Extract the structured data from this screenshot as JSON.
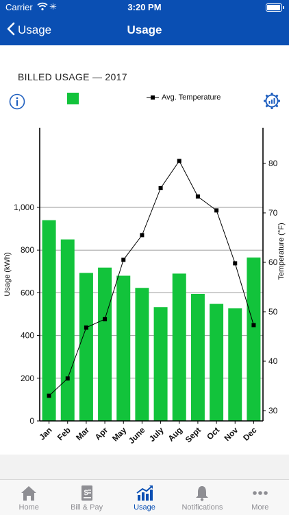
{
  "status_bar": {
    "carrier": "Carrier",
    "time": "3:20 PM"
  },
  "nav": {
    "back_label": "Usage",
    "title": "Usage"
  },
  "section": {
    "title": "BILLED USAGE — 2017"
  },
  "legend": {
    "temperature_label": "Avg. Temperature"
  },
  "colors": {
    "brand": "#0a4fb3",
    "bar": "#12c33b",
    "line": "#000000",
    "tab_inactive": "#8e8e93"
  },
  "chart_data": {
    "type": "bar",
    "categories": [
      "Jan",
      "Feb",
      "Mar",
      "Apr",
      "May",
      "June",
      "July",
      "Aug",
      "Sept",
      "Oct",
      "Nov",
      "Dec"
    ],
    "series": [
      {
        "type": "bar",
        "axis": "left",
        "values": [
          940,
          850,
          693,
          718,
          680,
          623,
          533,
          690,
          595,
          548,
          527,
          765
        ]
      },
      {
        "name": "Avg. Temperature",
        "type": "line",
        "axis": "right",
        "values": [
          33.0,
          36.5,
          46.8,
          48.5,
          60.5,
          65.5,
          75.0,
          80.5,
          73.3,
          70.5,
          59.8,
          47.3
        ]
      }
    ],
    "ylabel": "Usage (kWh)",
    "y2label": "Temperature (°F)",
    "ylim": [
      0,
      1000
    ],
    "yticks": [
      0,
      200,
      400,
      600,
      800,
      1000
    ],
    "yticklabels": [
      "0",
      "200",
      "400",
      "600",
      "800",
      "1,000"
    ],
    "y2lim": [
      30,
      80
    ],
    "y2ticks": [
      30,
      40,
      50,
      60,
      70,
      80
    ],
    "grid": true
  },
  "tabs": [
    {
      "label": "Home",
      "icon": "home-icon",
      "active": false
    },
    {
      "label": "Bill & Pay",
      "icon": "bill-icon",
      "active": false
    },
    {
      "label": "Usage",
      "icon": "usage-chart-icon",
      "active": true
    },
    {
      "label": "Notifications",
      "icon": "bell-icon",
      "active": false
    },
    {
      "label": "More",
      "icon": "more-dots-icon",
      "active": false
    }
  ]
}
